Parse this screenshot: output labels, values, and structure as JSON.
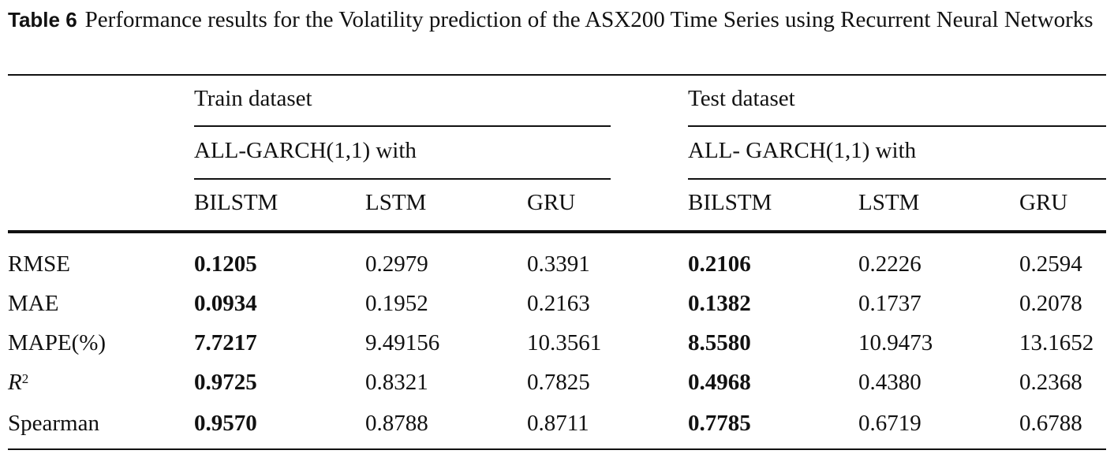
{
  "caption": {
    "label": "Table 6",
    "text": "Performance results for the Volatility prediction of the ASX200 Time Series using Recurrent Neural Networks"
  },
  "header": {
    "train_group": "Train dataset",
    "test_group": "Test dataset",
    "train_sub": "ALL-GARCH(1,1) with",
    "test_sub": "ALL- GARCH(1,1) with",
    "train_models": [
      "BILSTM",
      "LSTM",
      "GRU"
    ],
    "test_models": [
      "BILSTM",
      "LSTM",
      "GRU"
    ]
  },
  "rows": [
    {
      "metric": "RMSE",
      "train": [
        "0.1205",
        "0.2979",
        "0.3391"
      ],
      "test": [
        "0.2106",
        "0.2226",
        "0.2594"
      ]
    },
    {
      "metric": "MAE",
      "train": [
        "0.0934",
        "0.1952",
        "0.2163"
      ],
      "test": [
        "0.1382",
        "0.1737",
        "0.2078"
      ]
    },
    {
      "metric": "MAPE(%)",
      "train": [
        "7.7217",
        "9.49156",
        "10.3561"
      ],
      "test": [
        "8.5580",
        "10.9473",
        "13.1652"
      ]
    },
    {
      "metric": "R",
      "metric_sup": "2",
      "train": [
        "0.9725",
        "0.8321",
        "0.7825"
      ],
      "test": [
        "0.4968",
        "0.4380",
        "0.2368"
      ]
    },
    {
      "metric": "Spearman",
      "train": [
        "0.9570",
        "0.8788",
        "0.8711"
      ],
      "test": [
        "0.7785",
        "0.6719",
        "0.6788"
      ]
    }
  ],
  "best_marker": "bold first model column in each dataset"
}
